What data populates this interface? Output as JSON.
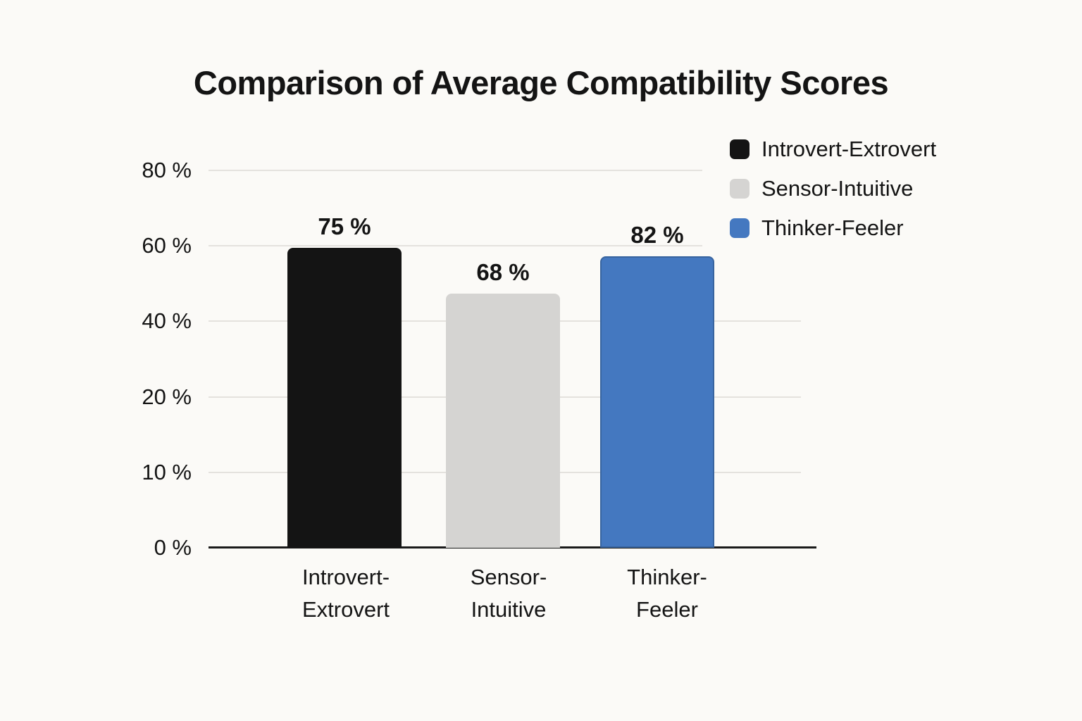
{
  "chart_data": {
    "type": "bar",
    "title": "Comparison of Average Compatibility Scores",
    "xlabel": "",
    "ylabel": "",
    "unit": "%",
    "ylim": [
      0,
      80
    ],
    "grid": true,
    "legend_position": "top-right",
    "categories": [
      "Introvert-\nExtrovert",
      "Sensor-\nIntuitive",
      "Thinker-\nFeeler"
    ],
    "values": [
      75,
      68,
      82
    ],
    "ytick_labels": [
      "80 %",
      "60 %",
      "40 %",
      "20 %",
      "10 %",
      "0 %"
    ],
    "series": [
      {
        "name": "Introvert-Extrovert",
        "value": 75,
        "value_label": "75 %",
        "color": "#141414",
        "edge_color": null,
        "bar_height_frac": 0.795
      },
      {
        "name": "Sensor-Intuitive",
        "value": 68,
        "value_label": "68 %",
        "color": "#d5d4d2",
        "edge_color": null,
        "bar_height_frac": 0.673
      },
      {
        "name": "Thinker-Feeler",
        "value": 82,
        "value_label": "82 %",
        "color": "#4478c0",
        "edge_color": "#38649f",
        "bar_height_frac": 0.772
      }
    ]
  },
  "colors": {
    "background": "#fbfaf7",
    "text": "#141414",
    "gridline": "#e4e2de",
    "axis": "#1a1a1a"
  }
}
